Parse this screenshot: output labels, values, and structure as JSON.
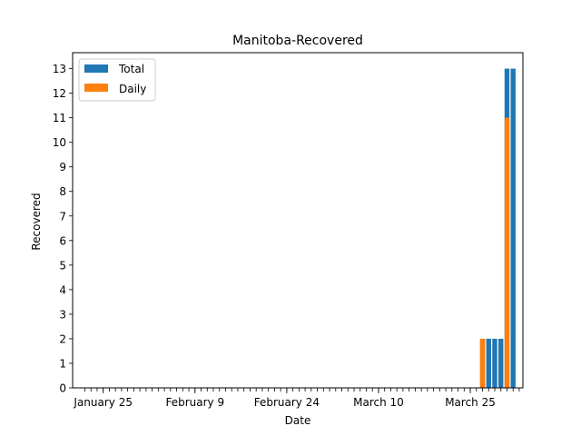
{
  "chart_data": {
    "type": "bar",
    "title": "Manitoba-Recovered",
    "xlabel": "Date",
    "ylabel": "Recovered",
    "ylim": [
      0,
      13.65
    ],
    "yticks": [
      0,
      1,
      2,
      3,
      4,
      5,
      6,
      7,
      8,
      9,
      10,
      11,
      12,
      13
    ],
    "x_start": "January 22",
    "x_end": "April 2",
    "date_ticks": [
      "January 25",
      "February 9",
      "February 24",
      "March 10",
      "March 25"
    ],
    "legend": {
      "position": "top-left",
      "entries": [
        "Total",
        "Daily"
      ]
    },
    "grid": false,
    "series": [
      {
        "name": "Total",
        "color": "#1f77b4",
        "points": [
          {
            "date": "March 27",
            "value": 2
          },
          {
            "date": "March 28",
            "value": 2
          },
          {
            "date": "March 29",
            "value": 2
          },
          {
            "date": "March 30",
            "value": 2
          },
          {
            "date": "March 31",
            "value": 13
          },
          {
            "date": "April 1",
            "value": 13
          }
        ]
      },
      {
        "name": "Daily",
        "color": "#ff7f0e",
        "points": [
          {
            "date": "March 27",
            "value": 2
          },
          {
            "date": "March 31",
            "value": 11
          }
        ]
      }
    ]
  }
}
